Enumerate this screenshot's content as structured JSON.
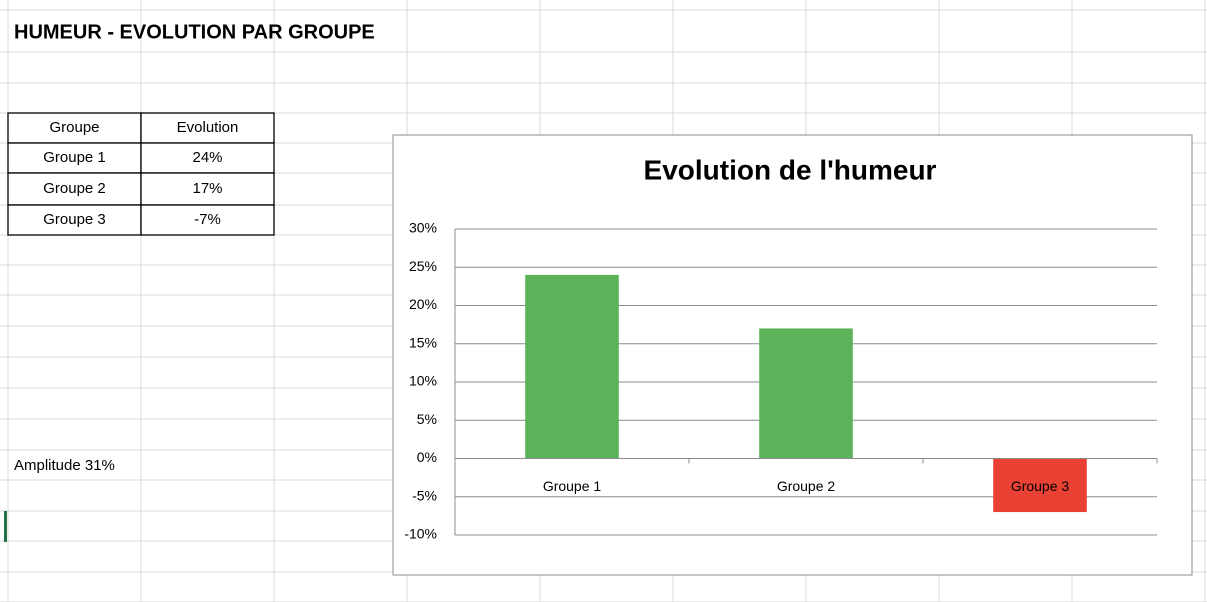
{
  "sheet": {
    "title": "HUMEUR - EVOLUTION PAR GROUPE",
    "table": {
      "header": [
        "Groupe",
        "Evolution"
      ],
      "rows": [
        [
          "Groupe 1",
          "24%"
        ],
        [
          "Groupe 2",
          "17%"
        ],
        [
          "Groupe 3",
          "-7%"
        ]
      ]
    },
    "note": "Amplitude 31%"
  },
  "chart_data": {
    "type": "bar",
    "title": "Evolution de l'humeur",
    "categories": [
      "Groupe 1",
      "Groupe 2",
      "Groupe 3"
    ],
    "values": [
      24,
      17,
      -7
    ],
    "colors": [
      "#5cb35a",
      "#5cb35a",
      "#e94235"
    ],
    "ylim": [
      -10,
      30
    ],
    "yticks": [
      {
        "value": -10,
        "label": "-10%"
      },
      {
        "value": -5,
        "label": "-5%"
      },
      {
        "value": 0,
        "label": "0%"
      },
      {
        "value": 5,
        "label": "5%"
      },
      {
        "value": 10,
        "label": "10%"
      },
      {
        "value": 15,
        "label": "15%"
      },
      {
        "value": 20,
        "label": "20%"
      },
      {
        "value": 25,
        "label": "25%"
      },
      {
        "value": 30,
        "label": "30%"
      }
    ],
    "grid": true
  }
}
